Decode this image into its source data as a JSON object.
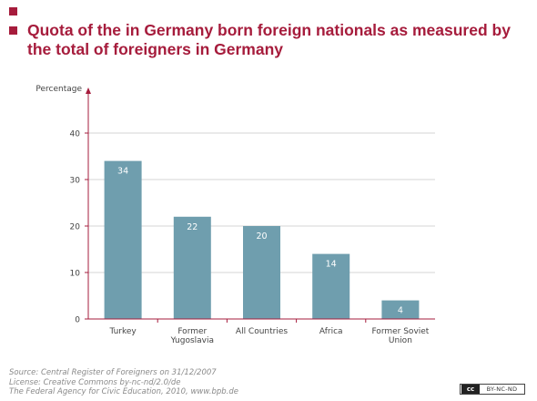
{
  "chart_data": {
    "type": "bar",
    "title": "Quota of the in Germany born foreign nationals as measured by the total of foreigners in Germany",
    "ylabel": "Percentage",
    "xlabel": "",
    "categories": [
      [
        "Turkey"
      ],
      [
        "Former",
        "Yugoslavia"
      ],
      [
        "All Countries"
      ],
      [
        "Africa"
      ],
      [
        "Former Soviet",
        "Union"
      ]
    ],
    "values": [
      34,
      22,
      20,
      14,
      4
    ],
    "data_labels": [
      "34",
      "22",
      "20",
      "14",
      "4"
    ],
    "ylim": [
      0,
      40
    ],
    "yticks": [
      0,
      10,
      20,
      30,
      40
    ],
    "grid": true,
    "colors": {
      "bar": "#6f9eae",
      "title": "#a61c3c",
      "grid": "#d4d4d4",
      "axis": "#a61c3c"
    }
  },
  "footer": {
    "lines": [
      "Source: Central Register of Foreigners on 31/12/2007",
      "License: Creative Commons by-nc-nd/2.0/de",
      "The Federal Agency for Civic Education, 2010, www.bpb.de"
    ]
  },
  "badge": {
    "logo": "cc",
    "text": "BY-NC-ND"
  }
}
